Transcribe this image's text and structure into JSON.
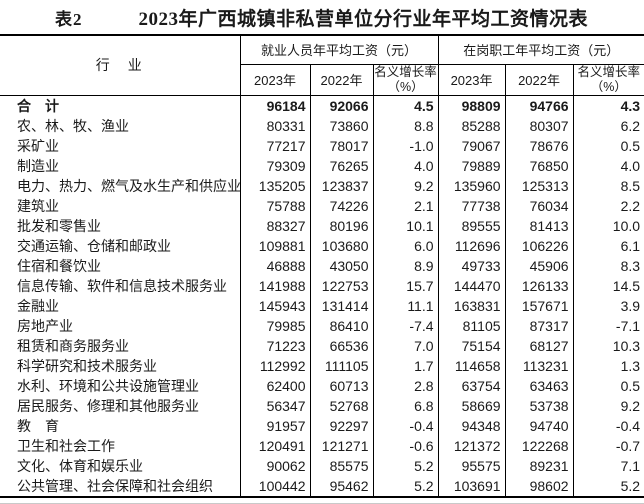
{
  "title": {
    "tag": "表2",
    "text": "2023年广西城镇非私营单位分行业年平均工资情况表"
  },
  "table": {
    "industry_header": "行　业",
    "groups": [
      {
        "label": "就业人员年平均工资（元）",
        "sub": [
          "2023年",
          "2022年",
          "名义增长率（%）"
        ]
      },
      {
        "label": "在岗职工年平均工资（元）",
        "sub": [
          "2023年",
          "2022年",
          "名义增长率（%）"
        ]
      }
    ],
    "rows": [
      {
        "label": "合　计",
        "total": true,
        "values": [
          "96184",
          "92066",
          "4.5",
          "98809",
          "94766",
          "4.3"
        ]
      },
      {
        "label": "农、林、牧、渔业",
        "values": [
          "80331",
          "73860",
          "8.8",
          "85288",
          "80307",
          "6.2"
        ]
      },
      {
        "label": "采矿业",
        "values": [
          "77217",
          "78017",
          "-1.0",
          "79067",
          "78676",
          "0.5"
        ]
      },
      {
        "label": "制造业",
        "values": [
          "79309",
          "76265",
          "4.0",
          "79889",
          "76850",
          "4.0"
        ]
      },
      {
        "label": "电力、热力、燃气及水生产和供应业",
        "values": [
          "135205",
          "123837",
          "9.2",
          "135960",
          "125313",
          "8.5"
        ]
      },
      {
        "label": "建筑业",
        "values": [
          "75788",
          "74226",
          "2.1",
          "77738",
          "76034",
          "2.2"
        ]
      },
      {
        "label": "批发和零售业",
        "values": [
          "88327",
          "80196",
          "10.1",
          "89555",
          "81413",
          "10.0"
        ]
      },
      {
        "label": "交通运输、仓储和邮政业",
        "values": [
          "109881",
          "103680",
          "6.0",
          "112696",
          "106226",
          "6.1"
        ]
      },
      {
        "label": "住宿和餐饮业",
        "values": [
          "46888",
          "43050",
          "8.9",
          "49733",
          "45906",
          "8.3"
        ]
      },
      {
        "label": "信息传输、软件和信息技术服务业",
        "values": [
          "141988",
          "122753",
          "15.7",
          "144470",
          "126133",
          "14.5"
        ]
      },
      {
        "label": "金融业",
        "values": [
          "145943",
          "131414",
          "11.1",
          "163831",
          "157671",
          "3.9"
        ]
      },
      {
        "label": "房地产业",
        "values": [
          "79985",
          "86410",
          "-7.4",
          "81105",
          "87317",
          "-7.1"
        ]
      },
      {
        "label": "租赁和商务服务业",
        "values": [
          "71223",
          "66536",
          "7.0",
          "75154",
          "68127",
          "10.3"
        ]
      },
      {
        "label": "科学研究和技术服务业",
        "values": [
          "112992",
          "111105",
          "1.7",
          "114658",
          "113231",
          "1.3"
        ]
      },
      {
        "label": "水利、环境和公共设施管理业",
        "values": [
          "62400",
          "60713",
          "2.8",
          "63754",
          "63463",
          "0.5"
        ]
      },
      {
        "label": "居民服务、修理和其他服务业",
        "values": [
          "56347",
          "52768",
          "6.8",
          "58669",
          "53738",
          "9.2"
        ]
      },
      {
        "label": "教　育",
        "values": [
          "91957",
          "92297",
          "-0.4",
          "94348",
          "94740",
          "-0.4"
        ]
      },
      {
        "label": "卫生和社会工作",
        "values": [
          "120491",
          "121271",
          "-0.6",
          "121372",
          "122268",
          "-0.7"
        ]
      },
      {
        "label": "文化、体育和娱乐业",
        "values": [
          "90062",
          "85575",
          "5.2",
          "95575",
          "89231",
          "7.1"
        ]
      },
      {
        "label": "公共管理、社会保障和社会组织",
        "values": [
          "100442",
          "95462",
          "5.2",
          "103691",
          "98602",
          "5.2"
        ]
      }
    ]
  }
}
